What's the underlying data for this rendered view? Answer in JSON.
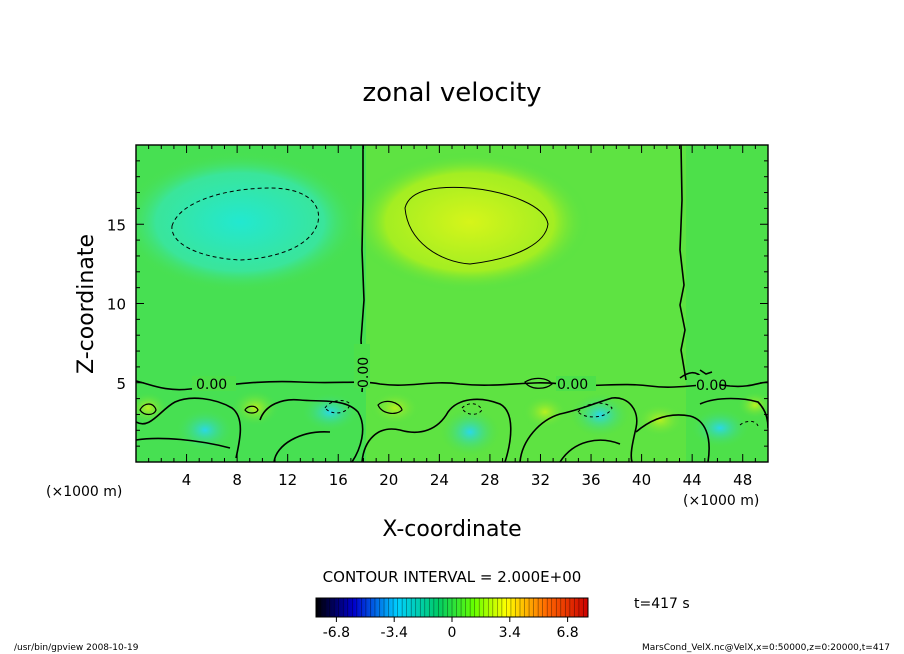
{
  "chart_data": {
    "type": "heatmap",
    "title": "zonal velocity",
    "xlabel": "X-coordinate",
    "ylabel": "Z-coordinate",
    "x_unit_left": "(×1000 m)",
    "x_unit_right": "(×1000 m)",
    "xlim": [
      0,
      50
    ],
    "ylim": [
      0,
      20
    ],
    "x_ticks": [
      4,
      8,
      12,
      16,
      20,
      24,
      28,
      32,
      36,
      40,
      44,
      48
    ],
    "y_ticks": [
      5,
      10,
      15
    ],
    "contour_interval_text": "CONTOUR INTERVAL = 2.000E+00",
    "contour_labels": [
      "0.00",
      "0.00",
      "0.00",
      "0.00"
    ],
    "colorbar": {
      "range": [
        -8,
        8
      ],
      "tick_values": [
        -6.8,
        -3.4,
        0,
        3.4,
        6.8
      ],
      "tick_labels": [
        "-6.8",
        "-3.4",
        "0",
        "3.4",
        "6.8"
      ],
      "colors": [
        "#000000",
        "#0000cc",
        "#00d0ff",
        "#00cc66",
        "#66ff00",
        "#ffff00",
        "#ff6600",
        "#cc0000"
      ]
    },
    "time_text": "t=417 s",
    "field_colors": {
      "background": "#4de04a",
      "negative": "#28e5b8",
      "positive": "#c8f01e"
    }
  },
  "footer": {
    "left": "/usr/bin/gpview   2008-10-19",
    "right": "MarsCond_VelX.nc@VelX,x=0:50000,z=0:20000,t=417"
  }
}
